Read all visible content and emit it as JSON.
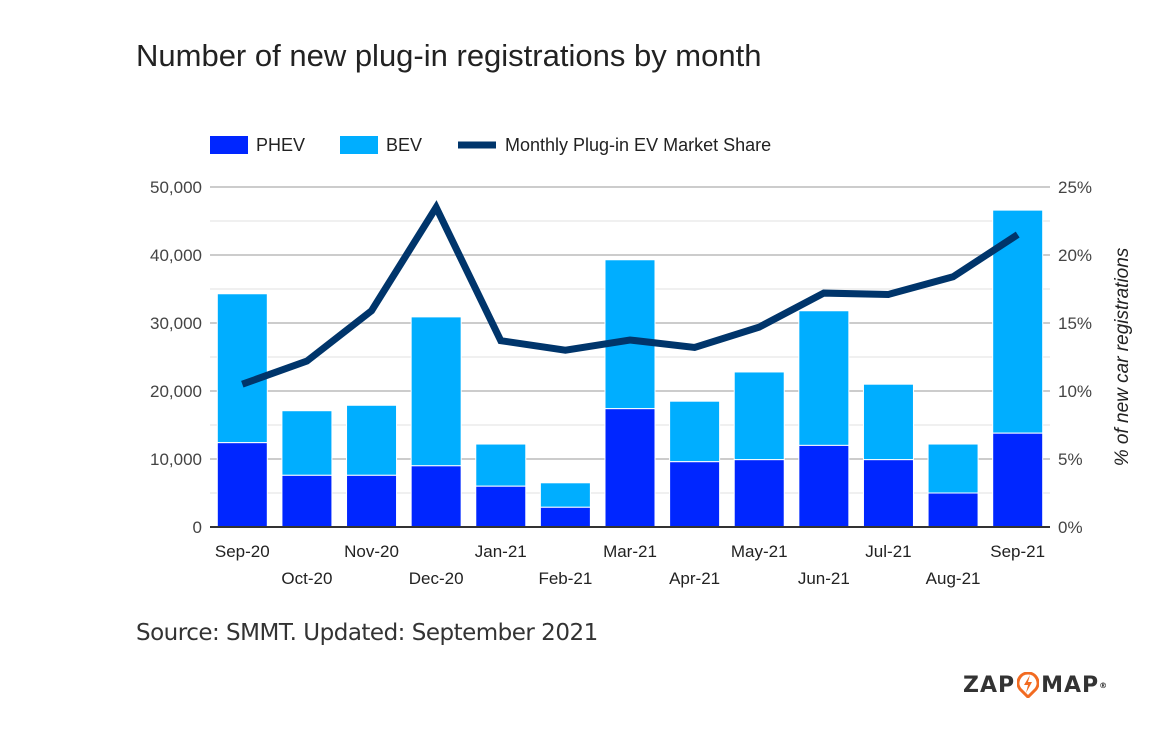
{
  "chart_data": {
    "type": "bar",
    "stacked": true,
    "title": "Number of new plug-in registrations by month",
    "categories": [
      "Sep-20",
      "Oct-20",
      "Nov-20",
      "Dec-20",
      "Jan-21",
      "Feb-21",
      "Mar-21",
      "Apr-21",
      "May-21",
      "Jun-21",
      "Jul-21",
      "Aug-21",
      "Sep-21"
    ],
    "series": [
      {
        "name": "PHEV",
        "type": "bar",
        "axis": "left",
        "color": "#0026ff",
        "values": [
          12400,
          7600,
          7600,
          9000,
          6000,
          2900,
          17400,
          9600,
          9900,
          12000,
          9900,
          5000,
          13800
        ]
      },
      {
        "name": "BEV",
        "type": "bar",
        "axis": "left",
        "color": "#00aeff",
        "values": [
          21900,
          9500,
          10300,
          21900,
          6200,
          3600,
          21900,
          8900,
          12900,
          19800,
          11100,
          7200,
          32800
        ]
      },
      {
        "name": "Monthly Plug-in EV Market Share",
        "type": "line",
        "axis": "right",
        "color": "#00356b",
        "values": [
          10.5,
          12.2,
          15.9,
          23.5,
          13.7,
          13.0,
          13.75,
          13.2,
          14.7,
          17.2,
          17.1,
          18.4,
          21.5
        ]
      }
    ],
    "ylim": [
      0,
      50000
    ],
    "yticks": [
      "0",
      "10,000",
      "20,000",
      "30,000",
      "40,000",
      "50,000"
    ],
    "y2lim": [
      0,
      25
    ],
    "y2ticks": [
      "0%",
      "5%",
      "10%",
      "15%",
      "20%",
      "25%"
    ],
    "ylabel": "",
    "y2label": "% of new car registrations",
    "legend": "top",
    "grid": true
  },
  "source": "Source: SMMT. Updated: September 2021",
  "logo": {
    "left": "ZAP",
    "right": "MAP",
    "mark": "®",
    "accent": "#f26b21"
  }
}
